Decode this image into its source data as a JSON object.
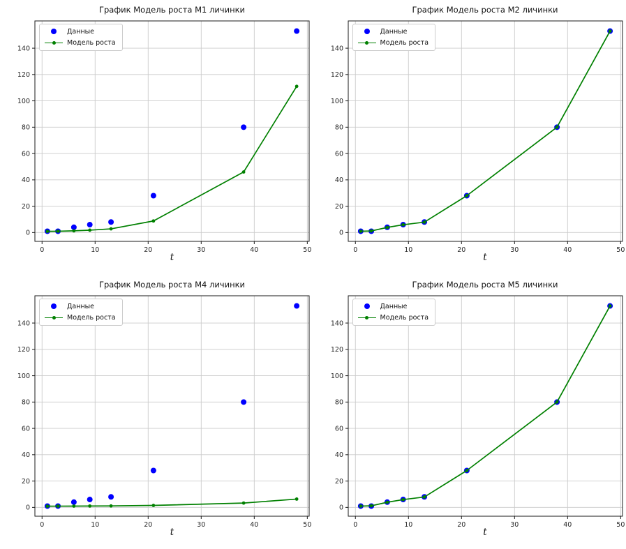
{
  "figure": {
    "background": "#ffffff",
    "grid_color": "#cbcbcb",
    "spine_color": "#1a1a1a",
    "tick_label_color": "#262626",
    "data_color": "#0000ff",
    "model_color": "#008000"
  },
  "chart_data": [
    {
      "type": "scatter",
      "title": "График Модель роста М1 личинки",
      "xlabel": "t",
      "ylabel": "",
      "x": [
        1,
        3,
        6,
        9,
        13,
        21,
        38,
        48
      ],
      "xlim": [
        -1.35,
        50.35
      ],
      "ylim": [
        -6.7,
        160.7
      ],
      "xticks": [
        0,
        10,
        20,
        30,
        40,
        50
      ],
      "yticks": [
        0,
        20,
        40,
        60,
        80,
        100,
        120,
        140
      ],
      "grid": true,
      "legend_position": "upper left",
      "series": [
        {
          "name": "Данные",
          "type": "scatter",
          "color": "#0000ff",
          "values": [
            1,
            1,
            4,
            6,
            8,
            28,
            80,
            153
          ]
        },
        {
          "name": "Модель роста",
          "type": "line",
          "color": "#008000",
          "values": [
            0.9,
            1.0,
            1.3,
            1.8,
            2.8,
            8.8,
            46,
            111
          ]
        }
      ]
    },
    {
      "type": "scatter",
      "title": "График Модель роста М2 личинки",
      "xlabel": "t",
      "ylabel": "",
      "x": [
        1,
        3,
        6,
        9,
        13,
        21,
        38,
        48
      ],
      "xlim": [
        -1.35,
        50.35
      ],
      "ylim": [
        -6.7,
        160.7
      ],
      "xticks": [
        0,
        10,
        20,
        30,
        40,
        50
      ],
      "yticks": [
        0,
        20,
        40,
        60,
        80,
        100,
        120,
        140
      ],
      "grid": true,
      "legend_position": "upper left",
      "series": [
        {
          "name": "Данные",
          "type": "scatter",
          "color": "#0000ff",
          "values": [
            1,
            1,
            4,
            6,
            8,
            28,
            80,
            153
          ]
        },
        {
          "name": "Модель роста",
          "type": "line",
          "color": "#008000",
          "values": [
            1,
            1.2,
            3.9,
            5.9,
            7.9,
            28,
            80,
            153
          ]
        }
      ]
    },
    {
      "type": "scatter",
      "title": "График Модель роста М4 личинки",
      "xlabel": "t",
      "ylabel": "",
      "x": [
        1,
        3,
        6,
        9,
        13,
        21,
        38,
        48
      ],
      "xlim": [
        -1.35,
        50.35
      ],
      "ylim": [
        -6.7,
        160.7
      ],
      "xticks": [
        0,
        10,
        20,
        30,
        40,
        50
      ],
      "yticks": [
        0,
        20,
        40,
        60,
        80,
        100,
        120,
        140
      ],
      "grid": true,
      "legend_position": "upper left",
      "series": [
        {
          "name": "Данные",
          "type": "scatter",
          "color": "#0000ff",
          "values": [
            1,
            1,
            4,
            6,
            8,
            28,
            80,
            153
          ]
        },
        {
          "name": "Модель роста",
          "type": "line",
          "color": "#008000",
          "values": [
            0.9,
            0.95,
            1.0,
            1.05,
            1.1,
            1.5,
            3.3,
            6.3
          ]
        }
      ]
    },
    {
      "type": "scatter",
      "title": "График Модель роста М5 личинки",
      "xlabel": "t",
      "ylabel": "",
      "x": [
        1,
        3,
        6,
        9,
        13,
        21,
        38,
        48
      ],
      "xlim": [
        -1.35,
        50.35
      ],
      "ylim": [
        -6.7,
        160.7
      ],
      "xticks": [
        0,
        10,
        20,
        30,
        40,
        50
      ],
      "yticks": [
        0,
        20,
        40,
        60,
        80,
        100,
        120,
        140
      ],
      "grid": true,
      "legend_position": "upper left",
      "series": [
        {
          "name": "Данные",
          "type": "scatter",
          "color": "#0000ff",
          "values": [
            1,
            1,
            4,
            6,
            8,
            28,
            80,
            153
          ]
        },
        {
          "name": "Модель роста",
          "type": "line",
          "color": "#008000",
          "values": [
            1,
            1.2,
            3.9,
            5.9,
            7.9,
            28,
            80,
            153
          ]
        }
      ]
    }
  ]
}
